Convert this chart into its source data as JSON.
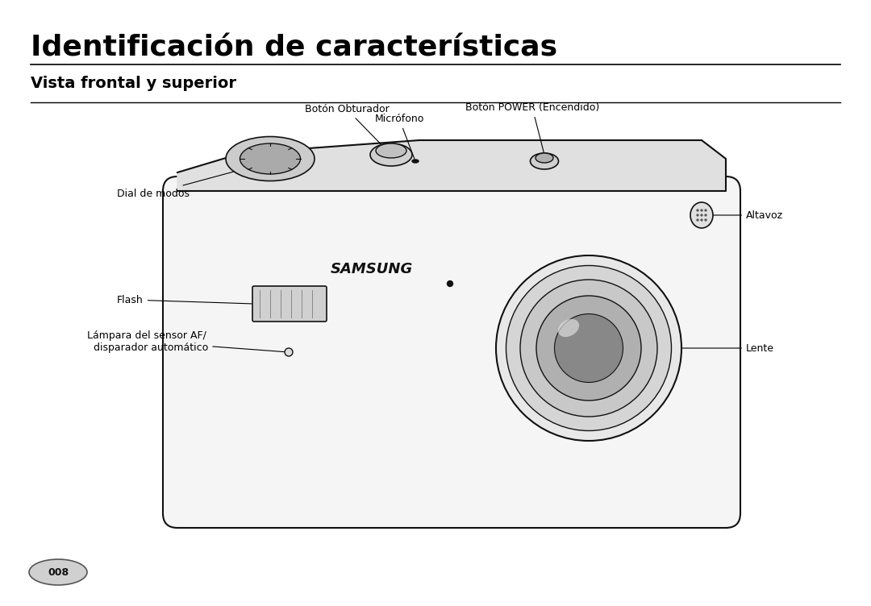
{
  "title": "Identificación de características",
  "subtitle": "Vista frontal y superior",
  "page_num": "008",
  "bg_color": "#ffffff",
  "text_color": "#000000",
  "labels": {
    "boton_obturador": "Botón Obturador",
    "boton_power": "Botón POWER (Encendido)",
    "microfono": "Micrófono",
    "dial_modos": "Dial de modos",
    "altavoz": "Altavoz",
    "flash": "Flash",
    "lampara": "Lámpara del sensor AF/\n  disparador automático",
    "lente": "Lente"
  },
  "title_fontsize": 26,
  "subtitle_fontsize": 14,
  "label_fontsize": 9
}
